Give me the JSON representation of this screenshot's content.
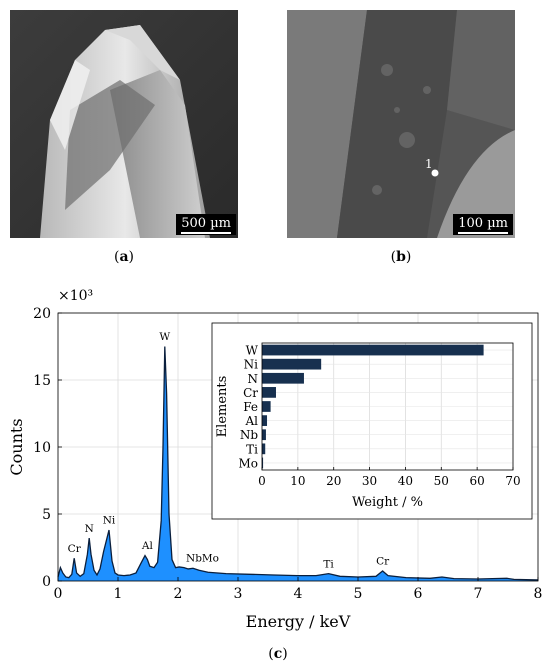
{
  "panels": {
    "a": {
      "label": "a",
      "scale_bar": "500 µm"
    },
    "b": {
      "label": "b",
      "scale_bar": "100 µm",
      "point_marker": "1"
    },
    "c": {
      "label": "c"
    }
  },
  "chart_data": [
    {
      "type": "area",
      "title": "",
      "xlabel": "Energy / keV",
      "ylabel": "Counts",
      "y_multiplier_label": "×10³",
      "xlim": [
        0,
        8
      ],
      "ylim": [
        0,
        20
      ],
      "xticks": [
        0,
        1,
        2,
        3,
        4,
        5,
        6,
        7,
        8
      ],
      "yticks": [
        0,
        5,
        10,
        15,
        20
      ],
      "grid": true,
      "fill_color": "#1e90ff",
      "line_color": "#0a1f3d",
      "spectrum": [
        [
          0.0,
          0.3
        ],
        [
          0.04,
          1.0
        ],
        [
          0.08,
          0.6
        ],
        [
          0.13,
          0.3
        ],
        [
          0.18,
          0.25
        ],
        [
          0.23,
          0.5
        ],
        [
          0.27,
          1.7
        ],
        [
          0.31,
          0.6
        ],
        [
          0.37,
          0.35
        ],
        [
          0.43,
          0.55
        ],
        [
          0.49,
          2.0
        ],
        [
          0.52,
          3.2
        ],
        [
          0.55,
          2.0
        ],
        [
          0.6,
          0.8
        ],
        [
          0.65,
          0.45
        ],
        [
          0.7,
          0.9
        ],
        [
          0.76,
          2.2
        ],
        [
          0.85,
          3.8
        ],
        [
          0.9,
          1.5
        ],
        [
          0.95,
          0.6
        ],
        [
          1.0,
          0.45
        ],
        [
          1.1,
          0.4
        ],
        [
          1.2,
          0.45
        ],
        [
          1.3,
          0.6
        ],
        [
          1.38,
          1.3
        ],
        [
          1.45,
          1.9
        ],
        [
          1.49,
          1.6
        ],
        [
          1.53,
          1.1
        ],
        [
          1.6,
          1.0
        ],
        [
          1.66,
          1.4
        ],
        [
          1.72,
          4.5
        ],
        [
          1.75,
          10.0
        ],
        [
          1.78,
          17.5
        ],
        [
          1.81,
          14.0
        ],
        [
          1.85,
          5.0
        ],
        [
          1.9,
          1.6
        ],
        [
          1.96,
          1.0
        ],
        [
          2.02,
          1.05
        ],
        [
          2.1,
          1.0
        ],
        [
          2.17,
          0.9
        ],
        [
          2.25,
          0.95
        ],
        [
          2.35,
          0.8
        ],
        [
          2.5,
          0.65
        ],
        [
          2.8,
          0.55
        ],
        [
          3.2,
          0.5
        ],
        [
          3.6,
          0.45
        ],
        [
          4.0,
          0.4
        ],
        [
          4.3,
          0.4
        ],
        [
          4.51,
          0.55
        ],
        [
          4.7,
          0.35
        ],
        [
          5.0,
          0.3
        ],
        [
          5.3,
          0.35
        ],
        [
          5.41,
          0.75
        ],
        [
          5.5,
          0.4
        ],
        [
          5.8,
          0.25
        ],
        [
          6.2,
          0.2
        ],
        [
          6.4,
          0.3
        ],
        [
          6.6,
          0.18
        ],
        [
          7.0,
          0.15
        ],
        [
          7.48,
          0.2
        ],
        [
          7.6,
          0.12
        ],
        [
          8.0,
          0.08
        ]
      ],
      "peak_labels": [
        {
          "label": "Cr",
          "x": 0.27,
          "y": 1.8
        },
        {
          "label": "N",
          "x": 0.52,
          "y": 3.3
        },
        {
          "label": "Ni",
          "x": 0.85,
          "y": 3.9
        },
        {
          "label": "Al",
          "x": 1.49,
          "y": 2.0
        },
        {
          "label": "W",
          "x": 1.78,
          "y": 17.6
        },
        {
          "label": "NbMo",
          "x": 2.2,
          "y": 1.1
        },
        {
          "label": "Ti",
          "x": 4.51,
          "y": 0.65
        },
        {
          "label": "Cr",
          "x": 5.41,
          "y": 0.85
        }
      ]
    },
    {
      "type": "bar",
      "orientation": "horizontal",
      "xlabel": "Weight / %",
      "ylabel": "Elements",
      "xlim": [
        0,
        70
      ],
      "xticks": [
        0,
        10,
        20,
        30,
        40,
        50,
        60,
        70
      ],
      "grid": true,
      "bar_color": "#17304f",
      "categories": [
        "W",
        "Ni",
        "N",
        "Cr",
        "Fe",
        "Al",
        "Nb",
        "Ti",
        "Mo"
      ],
      "values": [
        61.8,
        16.5,
        11.7,
        3.9,
        2.4,
        1.4,
        1.1,
        0.9,
        0.3
      ]
    }
  ]
}
